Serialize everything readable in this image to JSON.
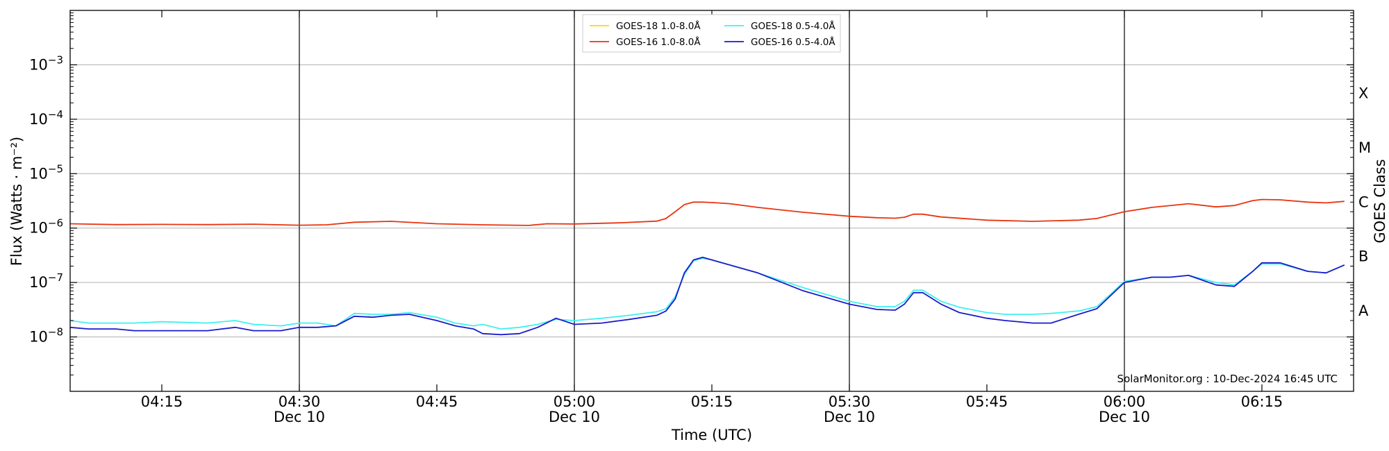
{
  "chart_data": {
    "type": "line",
    "title": "",
    "xlabel": "Time (UTC)",
    "ylabel": "Flux (Watts · m⁻²)",
    "right_axis_label": "GOES Class",
    "yscale": "log",
    "ylim": [
      1e-09,
      0.01
    ],
    "xlim": [
      "04:05",
      "06:25"
    ],
    "grid": "horizontal at decades, vertical at half-hours",
    "legend_position": "top-center",
    "credit": "SolarMonitor.org : 10-Dec-2024 16:45 UTC",
    "y_tick_labels": [
      {
        "value": 0.001,
        "base": "10",
        "exp": "−3"
      },
      {
        "value": 0.0001,
        "base": "10",
        "exp": "−4"
      },
      {
        "value": 1e-05,
        "base": "10",
        "exp": "−5"
      },
      {
        "value": 1e-06,
        "base": "10",
        "exp": "−6"
      },
      {
        "value": 1e-07,
        "base": "10",
        "exp": "−7"
      },
      {
        "value": 1e-08,
        "base": "10",
        "exp": "−8"
      }
    ],
    "x_ticks": [
      {
        "time": "04:15",
        "label": "04:15",
        "sublabel": ""
      },
      {
        "time": "04:30",
        "label": "04:30",
        "sublabel": "Dec 10"
      },
      {
        "time": "04:45",
        "label": "04:45",
        "sublabel": ""
      },
      {
        "time": "05:00",
        "label": "05:00",
        "sublabel": "Dec 10"
      },
      {
        "time": "05:15",
        "label": "05:15",
        "sublabel": ""
      },
      {
        "time": "05:30",
        "label": "05:30",
        "sublabel": "Dec 10"
      },
      {
        "time": "05:45",
        "label": "05:45",
        "sublabel": ""
      },
      {
        "time": "06:00",
        "label": "06:00",
        "sublabel": "Dec 10"
      },
      {
        "time": "06:15",
        "label": "06:15",
        "sublabel": ""
      }
    ],
    "goes_classes": [
      {
        "label": "X",
        "value": 0.0003
      },
      {
        "label": "M",
        "value": 3e-05
      },
      {
        "label": "C",
        "value": 3e-06
      },
      {
        "label": "B",
        "value": 3e-07
      },
      {
        "label": "A",
        "value": 3e-08
      }
    ],
    "series": [
      {
        "name": "GOES-18 1.0-8.0Å",
        "color": "#ffd700",
        "x": [],
        "y": []
      },
      {
        "name": "GOES-16 1.0-8.0Å",
        "color": "#e8330e",
        "x": [
          "04:05",
          "04:10",
          "04:15",
          "04:20",
          "04:25",
          "04:30",
          "04:33",
          "04:36",
          "04:40",
          "04:45",
          "04:50",
          "04:55",
          "04:57",
          "05:00",
          "05:05",
          "05:09",
          "05:10",
          "05:11",
          "05:12",
          "05:13",
          "05:14",
          "05:15",
          "05:17",
          "05:20",
          "05:25",
          "05:30",
          "05:33",
          "05:35",
          "05:36",
          "05:37",
          "05:38",
          "05:40",
          "05:45",
          "05:50",
          "05:55",
          "05:57",
          "06:00",
          "06:03",
          "06:07",
          "06:10",
          "06:12",
          "06:14",
          "06:15",
          "06:17",
          "06:20",
          "06:22",
          "06:24"
        ],
        "y": [
          1.2e-06,
          1.16e-06,
          1.17e-06,
          1.16e-06,
          1.18e-06,
          1.13e-06,
          1.15e-06,
          1.28e-06,
          1.33e-06,
          1.2e-06,
          1.15e-06,
          1.12e-06,
          1.2e-06,
          1.19e-06,
          1.25e-06,
          1.34e-06,
          1.5e-06,
          2e-06,
          2.7e-06,
          3e-06,
          3e-06,
          2.95e-06,
          2.8e-06,
          2.4e-06,
          1.95e-06,
          1.65e-06,
          1.55e-06,
          1.52e-06,
          1.58e-06,
          1.8e-06,
          1.8e-06,
          1.6e-06,
          1.4e-06,
          1.33e-06,
          1.4e-06,
          1.5e-06,
          2e-06,
          2.4e-06,
          2.8e-06,
          2.45e-06,
          2.6e-06,
          3.2e-06,
          3.35e-06,
          3.3e-06,
          3e-06,
          2.9e-06,
          3.1e-06
        ]
      },
      {
        "name": "GOES-18 0.5-4.0Å",
        "color": "#3ff0f0",
        "x": [
          "04:05",
          "04:07",
          "04:10",
          "04:12",
          "04:15",
          "04:20",
          "04:23",
          "04:25",
          "04:28",
          "04:30",
          "04:32",
          "04:34",
          "04:36",
          "04:38",
          "04:40",
          "04:42",
          "04:45",
          "04:47",
          "04:49",
          "04:50",
          "04:52",
          "04:54",
          "04:56",
          "04:58",
          "05:00",
          "05:03",
          "05:06",
          "05:09",
          "05:10",
          "05:11",
          "05:12",
          "05:13",
          "05:14",
          "05:15",
          "05:20",
          "05:25",
          "05:30",
          "05:33",
          "05:35",
          "05:36",
          "05:37",
          "05:38",
          "05:40",
          "05:42",
          "05:45",
          "05:47",
          "05:50",
          "05:52",
          "05:55",
          "05:57",
          "06:00",
          "06:03",
          "06:05",
          "06:07",
          "06:10",
          "06:12",
          "06:14",
          "06:15",
          "06:17",
          "06:20",
          "06:22",
          "06:24"
        ],
        "y": [
          2e-08,
          1.8e-08,
          1.8e-08,
          1.8e-08,
          1.9e-08,
          1.8e-08,
          2e-08,
          1.7e-08,
          1.6e-08,
          1.8e-08,
          1.8e-08,
          1.6e-08,
          2.7e-08,
          2.6e-08,
          2.6e-08,
          2.8e-08,
          2.3e-08,
          1.8e-08,
          1.6e-08,
          1.7e-08,
          1.4e-08,
          1.5e-08,
          1.7e-08,
          2.1e-08,
          2e-08,
          2.2e-08,
          2.5e-08,
          2.9e-08,
          3.3e-08,
          5.5e-08,
          1.4e-07,
          2.5e-07,
          2.8e-07,
          2.6e-07,
          1.5e-07,
          8e-08,
          4.5e-08,
          3.6e-08,
          3.6e-08,
          4.5e-08,
          7.2e-08,
          7.2e-08,
          4.5e-08,
          3.5e-08,
          2.8e-08,
          2.6e-08,
          2.6e-08,
          2.7e-08,
          3e-08,
          3.6e-08,
          1.05e-07,
          1.25e-07,
          1.25e-07,
          1.35e-07,
          1e-07,
          9e-08,
          1.6e-07,
          2.2e-07,
          2.2e-07,
          1.6e-07,
          1.5e-07,
          2.1e-07
        ]
      },
      {
        "name": "GOES-16 0.5-4.0Å",
        "color": "#1a1acc",
        "x": [
          "04:05",
          "04:07",
          "04:10",
          "04:12",
          "04:15",
          "04:20",
          "04:23",
          "04:25",
          "04:28",
          "04:30",
          "04:32",
          "04:34",
          "04:36",
          "04:38",
          "04:40",
          "04:42",
          "04:45",
          "04:47",
          "04:49",
          "04:50",
          "04:52",
          "04:54",
          "04:56",
          "04:58",
          "05:00",
          "05:03",
          "05:06",
          "05:09",
          "05:10",
          "05:11",
          "05:12",
          "05:13",
          "05:14",
          "05:15",
          "05:20",
          "05:25",
          "05:30",
          "05:33",
          "05:35",
          "05:36",
          "05:37",
          "05:38",
          "05:40",
          "05:42",
          "05:45",
          "05:47",
          "05:50",
          "05:52",
          "05:55",
          "05:57",
          "06:00",
          "06:03",
          "06:05",
          "06:07",
          "06:10",
          "06:12",
          "06:14",
          "06:15",
          "06:17",
          "06:20",
          "06:22",
          "06:24"
        ],
        "y": [
          1.5e-08,
          1.4e-08,
          1.4e-08,
          1.3e-08,
          1.3e-08,
          1.3e-08,
          1.5e-08,
          1.3e-08,
          1.3e-08,
          1.5e-08,
          1.5e-08,
          1.6e-08,
          2.4e-08,
          2.3e-08,
          2.5e-08,
          2.6e-08,
          2e-08,
          1.6e-08,
          1.4e-08,
          1.15e-08,
          1.1e-08,
          1.15e-08,
          1.5e-08,
          2.2e-08,
          1.7e-08,
          1.8e-08,
          2.1e-08,
          2.5e-08,
          3e-08,
          5e-08,
          1.5e-07,
          2.6e-07,
          2.9e-07,
          2.6e-07,
          1.5e-07,
          7e-08,
          4e-08,
          3.2e-08,
          3.1e-08,
          4e-08,
          6.5e-08,
          6.5e-08,
          4e-08,
          2.8e-08,
          2.2e-08,
          2e-08,
          1.8e-08,
          1.8e-08,
          2.6e-08,
          3.3e-08,
          1e-07,
          1.25e-07,
          1.25e-07,
          1.35e-07,
          9e-08,
          8.5e-08,
          1.6e-07,
          2.3e-07,
          2.3e-07,
          1.6e-07,
          1.5e-07,
          2.1e-07
        ]
      }
    ]
  }
}
